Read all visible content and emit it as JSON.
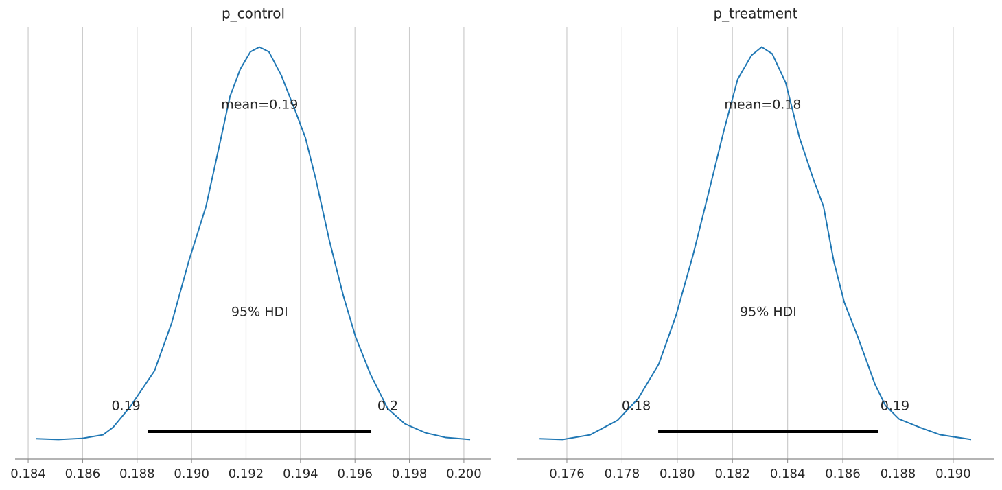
{
  "chart_data": [
    {
      "type": "density",
      "title": "p_control",
      "color": "#1f77b4",
      "grid": true,
      "x": [
        0.1843,
        0.18511,
        0.18599,
        0.18675,
        0.18712,
        0.18775,
        0.18864,
        0.18927,
        0.1899,
        0.19053,
        0.19103,
        0.19141,
        0.19179,
        0.19216,
        0.19249,
        0.19284,
        0.1933,
        0.1938,
        0.19418,
        0.19456,
        0.19506,
        0.19557,
        0.19602,
        0.19657,
        0.1972,
        0.19783,
        0.19859,
        0.19934,
        0.20023
      ],
      "values": [
        0.002,
        0,
        0.003,
        0.012,
        0.031,
        0.084,
        0.175,
        0.297,
        0.455,
        0.594,
        0.752,
        0.874,
        0.944,
        0.988,
        1,
        0.988,
        0.927,
        0.839,
        0.769,
        0.664,
        0.507,
        0.367,
        0.262,
        0.166,
        0.079,
        0.04,
        0.017,
        0.005,
        0
      ],
      "xlim": [
        0.18352,
        0.20101
      ],
      "ylim": [
        -0.05,
        1.05
      ],
      "xticks": [
        0.184,
        0.186,
        0.188,
        {
          "value": 0.19,
          "label": "0.190"
        },
        0.192,
        0.194,
        0.196,
        0.198,
        {
          "value": 0.2,
          "label": "0.200"
        }
      ],
      "mean": 0.1925,
      "mean_label": "mean=0.19",
      "hdi_label": "95% HDI",
      "hdi": [
        0.1884,
        0.1966
      ],
      "hdi_labels": [
        "0.19",
        "0.2"
      ]
    },
    {
      "type": "density",
      "title": "p_treatment",
      "color": "#1f77b4",
      "grid": true,
      "x": [
        0.17501,
        0.17585,
        0.17685,
        0.17784,
        0.17859,
        0.17933,
        0.17995,
        0.18058,
        0.1812,
        0.18169,
        0.18219,
        0.18269,
        0.18306,
        0.18344,
        0.18393,
        0.18443,
        0.18493,
        0.1853,
        0.18567,
        0.18605,
        0.18654,
        0.18717,
        0.18754,
        0.18804,
        0.18878,
        0.18953,
        0.19065
      ],
      "values": [
        0.002,
        0,
        0.012,
        0.049,
        0.105,
        0.192,
        0.315,
        0.472,
        0.647,
        0.787,
        0.918,
        0.979,
        1,
        0.983,
        0.909,
        0.769,
        0.664,
        0.594,
        0.455,
        0.35,
        0.262,
        0.14,
        0.087,
        0.052,
        0.031,
        0.012,
        0
      ],
      "xlim": [
        0.17421,
        0.19147
      ],
      "ylim": [
        -0.05,
        1.05
      ],
      "xticks": [
        0.176,
        0.178,
        {
          "value": 0.18,
          "label": "0.180"
        },
        0.182,
        0.184,
        0.186,
        0.188,
        {
          "value": 0.19,
          "label": "0.190"
        }
      ],
      "mean": 0.1831,
      "mean_label": "mean=0.18",
      "hdi_label": "95% HDI",
      "hdi": [
        0.17931,
        0.18729
      ],
      "hdi_labels": [
        "0.18",
        "0.19"
      ]
    }
  ]
}
